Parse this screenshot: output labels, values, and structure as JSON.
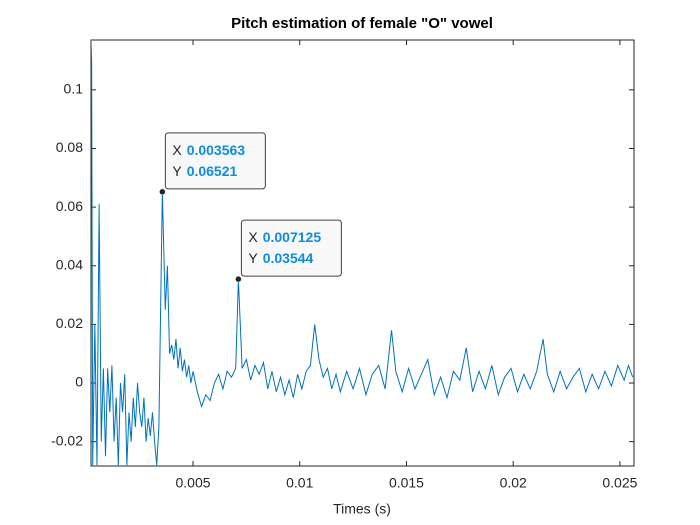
{
  "chart_data": {
    "type": "line",
    "title": "Pitch estimation of female \"O\" vowel",
    "x_label": "Times (s)",
    "color": "#0072bd",
    "xlim": [
      0.00022,
      0.02566
    ],
    "ylim": [
      -0.0283,
      0.117
    ],
    "xticks": [
      0.005,
      0.01,
      0.015,
      0.02,
      0.025
    ],
    "yticks": [
      -0.02,
      0,
      0.02,
      0.04,
      0.06,
      0.08,
      0.1
    ],
    "x": [
      0.00022,
      0.00025,
      0.0003,
      0.0004,
      0.0005,
      0.0006,
      0.0007,
      0.0008,
      0.0009,
      0.001,
      0.0011,
      0.0012,
      0.0013,
      0.0014,
      0.0015,
      0.0016,
      0.0017,
      0.0018,
      0.0019,
      0.002,
      0.0021,
      0.0022,
      0.0023,
      0.0024,
      0.0025,
      0.0026,
      0.0027,
      0.0028,
      0.0029,
      0.003,
      0.0031,
      0.0032,
      0.0033,
      0.0034,
      0.003563,
      0.0037,
      0.0038,
      0.0039,
      0.004,
      0.0041,
      0.0042,
      0.0043,
      0.0044,
      0.0045,
      0.0046,
      0.0047,
      0.0048,
      0.0049,
      0.005,
      0.0052,
      0.0054,
      0.0056,
      0.0058,
      0.006,
      0.0062,
      0.0064,
      0.0066,
      0.0068,
      0.007,
      0.007125,
      0.0073,
      0.0075,
      0.0077,
      0.0079,
      0.0081,
      0.0083,
      0.0085,
      0.0087,
      0.0089,
      0.0091,
      0.0093,
      0.0095,
      0.0097,
      0.0099,
      0.0101,
      0.0103,
      0.0105,
      0.0107,
      0.0109,
      0.0111,
      0.0113,
      0.0115,
      0.0117,
      0.0119,
      0.0122,
      0.0125,
      0.0128,
      0.0131,
      0.0134,
      0.0137,
      0.014,
      0.0143,
      0.0145,
      0.0148,
      0.0151,
      0.0154,
      0.0157,
      0.016,
      0.0163,
      0.0166,
      0.0169,
      0.0172,
      0.0175,
      0.0178,
      0.0181,
      0.0184,
      0.0187,
      0.019,
      0.0193,
      0.0196,
      0.0199,
      0.0202,
      0.0205,
      0.0208,
      0.0211,
      0.0214,
      0.0216,
      0.0219,
      0.0222,
      0.0225,
      0.0228,
      0.0231,
      0.0234,
      0.0237,
      0.024,
      0.0243,
      0.0246,
      0.0249,
      0.0252,
      0.0254,
      0.0256
    ],
    "values": [
      0.117,
      0.11,
      -0.028,
      0.02,
      -0.028,
      0.061,
      -0.02,
      0.005,
      -0.025,
      0.005,
      -0.01,
      0.006,
      -0.02,
      -0.005,
      -0.028,
      0.0,
      -0.01,
      0.003,
      -0.028,
      -0.01,
      -0.02,
      -0.005,
      -0.015,
      0.0,
      -0.01,
      -0.015,
      -0.005,
      -0.02,
      -0.012,
      -0.018,
      -0.01,
      -0.02,
      -0.028,
      -0.015,
      0.06521,
      0.025,
      0.04,
      0.01,
      0.013,
      0.008,
      0.015,
      0.005,
      0.012,
      0.004,
      0.008,
      0.002,
      0.006,
      0.0,
      0.004,
      -0.003,
      -0.008,
      -0.004,
      -0.006,
      0.0,
      0.003,
      -0.002,
      0.004,
      0.002,
      0.005,
      0.03544,
      0.005,
      0.008,
      0.001,
      0.006,
      0.003,
      0.007,
      -0.002,
      0.004,
      -0.003,
      0.002,
      -0.004,
      0.001,
      -0.005,
      0.003,
      -0.002,
      0.004,
      0.006,
      0.02,
      0.008,
      0.002,
      0.005,
      -0.002,
      0.003,
      -0.003,
      0.004,
      -0.002,
      0.005,
      -0.004,
      0.003,
      0.006,
      -0.002,
      0.018,
      0.004,
      -0.003,
      0.005,
      -0.002,
      0.003,
      0.008,
      -0.004,
      0.002,
      -0.005,
      0.004,
      0.001,
      0.012,
      -0.003,
      0.004,
      -0.002,
      0.006,
      -0.004,
      0.002,
      0.005,
      -0.003,
      0.003,
      -0.002,
      0.004,
      0.015,
      0.003,
      -0.003,
      0.004,
      -0.002,
      0.002,
      0.005,
      -0.003,
      0.003,
      -0.002,
      0.004,
      -0.001,
      0.006,
      0.001,
      0.006,
      0.002
    ],
    "datatips": [
      {
        "x_label": "X",
        "x": 0.003563,
        "y_label": "Y",
        "y": 0.06521
      },
      {
        "x_label": "X",
        "x": 0.007125,
        "y_label": "Y",
        "y": 0.03544
      }
    ]
  }
}
